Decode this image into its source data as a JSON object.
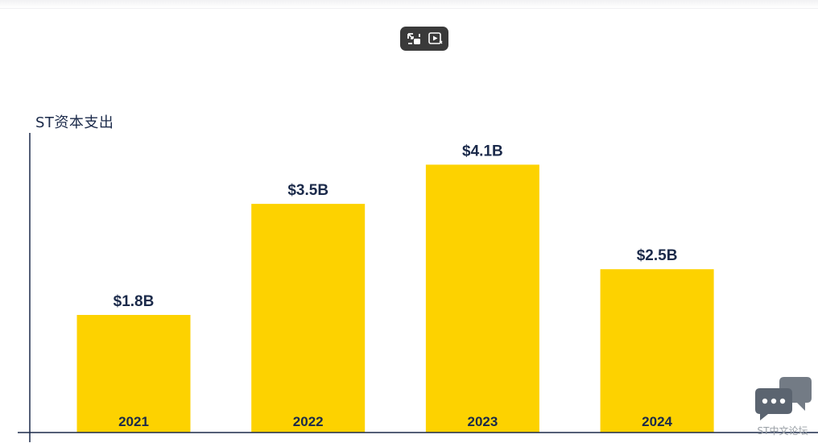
{
  "toolbar": {
    "icons": [
      "picture-in-picture-icon",
      "play-video-icon"
    ]
  },
  "chart_data": {
    "type": "bar",
    "title": "ST资本支出",
    "categories": [
      "2021",
      "2022",
      "2023",
      "2024"
    ],
    "values": [
      1.8,
      3.5,
      4.1,
      2.5
    ],
    "data_labels": [
      "$1.8B",
      "$3.5B",
      "$4.1B",
      "$2.5B"
    ],
    "unit": "$B",
    "ylim": [
      0,
      4.5
    ],
    "grid": false,
    "legend": "none",
    "bar_color": "#fdd200",
    "label_color": "#1b2a4a",
    "axis_color": "#1b2a4a"
  },
  "watermark": {
    "text": "ST中文论坛",
    "icon": "chat-bubbles-icon",
    "color": "#5b6470"
  }
}
